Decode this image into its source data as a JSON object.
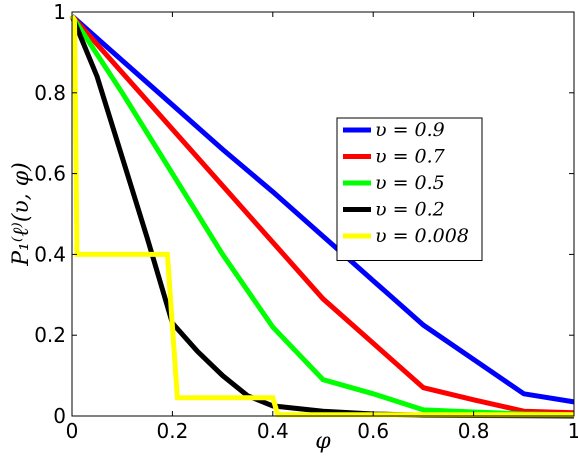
{
  "chart_data": {
    "type": "line",
    "xlabel": "φ",
    "ylabel": "P₁⁽ℓ⁾(υ, φ)",
    "xlim": [
      0,
      1
    ],
    "ylim": [
      0,
      1
    ],
    "x_ticks": [
      {
        "value": 0,
        "label": "0"
      },
      {
        "value": 0.2,
        "label": "0.2"
      },
      {
        "value": 0.4,
        "label": "0.4"
      },
      {
        "value": 0.6,
        "label": "0.6"
      },
      {
        "value": 0.8,
        "label": "0.8"
      },
      {
        "value": 1,
        "label": "1"
      }
    ],
    "y_ticks": [
      {
        "value": 0,
        "label": "0"
      },
      {
        "value": 0.2,
        "label": "0.2"
      },
      {
        "value": 0.4,
        "label": "0.4"
      },
      {
        "value": 0.6,
        "label": "0.6"
      },
      {
        "value": 0.8,
        "label": "0.8"
      },
      {
        "value": 1,
        "label": "1"
      }
    ],
    "grid": false,
    "legend_position": "middle-right",
    "series": [
      {
        "name": "υ = 0.9",
        "color": "#0000ff",
        "x": [
          0,
          0.1,
          0.2,
          0.3,
          0.4,
          0.5,
          0.6,
          0.7,
          0.8,
          0.9,
          1.0
        ],
        "y": [
          0.99,
          0.88,
          0.77,
          0.66,
          0.555,
          0.445,
          0.335,
          0.225,
          0.14,
          0.055,
          0.035
        ]
      },
      {
        "name": "υ = 0.7",
        "color": "#ff0000",
        "x": [
          0,
          0.1,
          0.2,
          0.3,
          0.4,
          0.5,
          0.6,
          0.7,
          0.8,
          0.9,
          1.0
        ],
        "y": [
          0.99,
          0.85,
          0.71,
          0.57,
          0.43,
          0.29,
          0.18,
          0.07,
          0.04,
          0.012,
          0.008
        ]
      },
      {
        "name": "υ = 0.5",
        "color": "#00ff00",
        "x": [
          0,
          0.1,
          0.2,
          0.3,
          0.4,
          0.5,
          0.6,
          0.7,
          0.8,
          0.9,
          1.0
        ],
        "y": [
          0.99,
          0.8,
          0.6,
          0.4,
          0.22,
          0.09,
          0.055,
          0.015,
          0.01,
          0.005,
          0.003
        ]
      },
      {
        "name": "υ = 0.2",
        "color": "#000000",
        "x": [
          0,
          0.05,
          0.1,
          0.15,
          0.2,
          0.25,
          0.3,
          0.35,
          0.4,
          0.5,
          0.6,
          0.7,
          1.0
        ],
        "y": [
          0.99,
          0.84,
          0.64,
          0.44,
          0.23,
          0.16,
          0.1,
          0.05,
          0.025,
          0.012,
          0.005,
          0.002,
          0.0
        ]
      },
      {
        "name": "υ = 0.008",
        "color": "#ffff00",
        "x": [
          0,
          0.005,
          0.01,
          0.19,
          0.21,
          0.4,
          0.41,
          1.0
        ],
        "y": [
          0.99,
          0.98,
          0.4,
          0.4,
          0.045,
          0.045,
          0.003,
          0.003
        ]
      }
    ]
  }
}
